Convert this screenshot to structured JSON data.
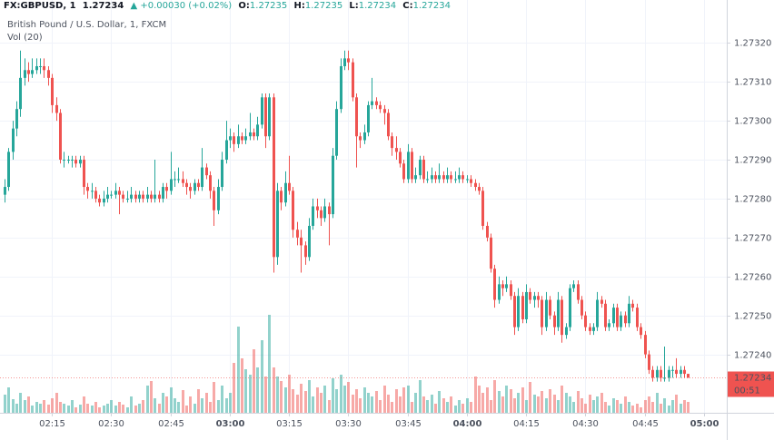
{
  "header": {
    "symbol": "FX:GBPUSD, 1",
    "price": 1.27234,
    "change": "▲ +0.00030 (+0.02%)",
    "ohlc": [
      {
        "label": "O:",
        "value": 1.27235
      },
      {
        "label": "H:",
        "value": 1.27235
      },
      {
        "label": "L:",
        "value": 1.27234
      },
      {
        "label": "C:",
        "value": 1.27234
      }
    ],
    "legend": "British Pound / U.S. Dollar, 1, FXCM",
    "volume_legend": "Vol (20)"
  },
  "chart_data": {
    "type": "candlestick",
    "up_color": "#26a69a",
    "down_color": "#ef5350",
    "grid": true,
    "ylim": [
      1.27225,
      1.27331
    ],
    "yticks": [
      {
        "value": 1.2724,
        "label": "1.27240"
      },
      {
        "value": 1.2725,
        "label": "1.27250"
      },
      {
        "value": 1.2726,
        "label": "1.27260"
      },
      {
        "value": 1.2727,
        "label": "1.27270"
      },
      {
        "value": 1.2728,
        "label": "1.27280"
      },
      {
        "value": 1.2729,
        "label": "1.27290"
      },
      {
        "value": 1.273,
        "label": "1.27300"
      },
      {
        "value": 1.2731,
        "label": "1.27310"
      },
      {
        "value": 1.2732,
        "label": "1.27320"
      }
    ],
    "xlim": [
      -1.15,
      182.8
    ],
    "xticks": [
      {
        "value": 12,
        "label": "02:15"
      },
      {
        "value": 27,
        "label": "02:30"
      },
      {
        "value": 42,
        "label": "02:45"
      },
      {
        "value": 57,
        "label": "03:00",
        "bold": true
      },
      {
        "value": 72,
        "label": "03:15"
      },
      {
        "value": 87,
        "label": "03:30"
      },
      {
        "value": 102,
        "label": "03:45"
      },
      {
        "value": 117,
        "label": "04:00",
        "bold": true
      },
      {
        "value": 132,
        "label": "04:15"
      },
      {
        "value": 147,
        "label": "04:30"
      },
      {
        "value": 162,
        "label": "04:45"
      },
      {
        "value": 177,
        "label": "05:00",
        "bold": true
      }
    ],
    "last_price": 1.27234,
    "countdown": "00:51",
    "volume_ylim": [
      0,
      120
    ],
    "candles": [
      [
        1.27281,
        1.27285,
        1.27279,
        1.27283
      ],
      [
        1.27283,
        1.27293,
        1.27282,
        1.27292
      ],
      [
        1.27292,
        1.273,
        1.2729,
        1.27298
      ],
      [
        1.27298,
        1.27305,
        1.27296,
        1.27303
      ],
      [
        1.27303,
        1.27318,
        1.27301,
        1.27311
      ],
      [
        1.27311,
        1.27316,
        1.27309,
        1.27313
      ],
      [
        1.27313,
        1.27315,
        1.2731,
        1.27312
      ],
      [
        1.27312,
        1.27316,
        1.27311,
        1.27313
      ],
      [
        1.27313,
        1.27316,
        1.27312,
        1.27314
      ],
      [
        1.27314,
        1.27316,
        1.27312,
        1.27314
      ],
      [
        1.27314,
        1.27316,
        1.27311,
        1.27313
      ],
      [
        1.27313,
        1.27314,
        1.27309,
        1.27311
      ],
      [
        1.27311,
        1.27312,
        1.27302,
        1.27304
      ],
      [
        1.27304,
        1.27306,
        1.273,
        1.27302
      ],
      [
        1.27302,
        1.27303,
        1.27289,
        1.2729
      ],
      [
        1.2729,
        1.27292,
        1.27288,
        1.2729
      ],
      [
        1.2729,
        1.27291,
        1.27289,
        1.2729
      ],
      [
        1.2729,
        1.27291,
        1.27288,
        1.2729
      ],
      [
        1.2729,
        1.27291,
        1.27288,
        1.27289
      ],
      [
        1.27289,
        1.27291,
        1.27288,
        1.2729
      ],
      [
        1.2729,
        1.27291,
        1.27281,
        1.27283
      ],
      [
        1.27283,
        1.27284,
        1.2728,
        1.27282
      ],
      [
        1.27282,
        1.27284,
        1.2728,
        1.27282
      ],
      [
        1.27282,
        1.27283,
        1.27279,
        1.2728
      ],
      [
        1.2728,
        1.27281,
        1.27278,
        1.27279
      ],
      [
        1.27279,
        1.27282,
        1.27278,
        1.2728
      ],
      [
        1.2728,
        1.27283,
        1.27279,
        1.27281
      ],
      [
        1.27281,
        1.27282,
        1.2728,
        1.27281
      ],
      [
        1.27281,
        1.27284,
        1.2728,
        1.27282
      ],
      [
        1.27282,
        1.27283,
        1.27276,
        1.27281
      ],
      [
        1.27281,
        1.27282,
        1.27279,
        1.2728
      ],
      [
        1.2728,
        1.27282,
        1.27279,
        1.2728
      ],
      [
        1.2728,
        1.27283,
        1.27279,
        1.27281
      ],
      [
        1.27281,
        1.27282,
        1.27279,
        1.2728
      ],
      [
        1.2728,
        1.27282,
        1.27279,
        1.27281
      ],
      [
        1.27281,
        1.27282,
        1.27279,
        1.2728
      ],
      [
        1.2728,
        1.27283,
        1.27279,
        1.27281
      ],
      [
        1.27281,
        1.27282,
        1.27279,
        1.2728
      ],
      [
        1.2728,
        1.2729,
        1.27279,
        1.27281
      ],
      [
        1.27281,
        1.27282,
        1.27279,
        1.2728
      ],
      [
        1.2728,
        1.27284,
        1.27279,
        1.27283
      ],
      [
        1.27283,
        1.27284,
        1.2728,
        1.27282
      ],
      [
        1.27282,
        1.27292,
        1.27281,
        1.27285
      ],
      [
        1.27285,
        1.27287,
        1.27283,
        1.27285
      ],
      [
        1.27285,
        1.27288,
        1.27284,
        1.27285
      ],
      [
        1.27285,
        1.27287,
        1.27283,
        1.27284
      ],
      [
        1.27284,
        1.27285,
        1.27281,
        1.27283
      ],
      [
        1.27283,
        1.27284,
        1.2728,
        1.27282
      ],
      [
        1.27282,
        1.27285,
        1.27281,
        1.27284
      ],
      [
        1.27284,
        1.27285,
        1.27282,
        1.27283
      ],
      [
        1.27283,
        1.27293,
        1.27282,
        1.27288
      ],
      [
        1.27288,
        1.27289,
        1.27285,
        1.27286
      ],
      [
        1.27286,
        1.27287,
        1.2728,
        1.27282
      ],
      [
        1.27282,
        1.27283,
        1.27273,
        1.27277
      ],
      [
        1.27277,
        1.27285,
        1.27276,
        1.27283
      ],
      [
        1.27283,
        1.27292,
        1.27282,
        1.2729
      ],
      [
        1.2729,
        1.273,
        1.27289,
        1.27295
      ],
      [
        1.27295,
        1.27298,
        1.27293,
        1.27296
      ],
      [
        1.27296,
        1.27297,
        1.27292,
        1.27294
      ],
      [
        1.27294,
        1.27299,
        1.27293,
        1.27296
      ],
      [
        1.27296,
        1.27297,
        1.27294,
        1.27295
      ],
      [
        1.27295,
        1.27298,
        1.27294,
        1.27296
      ],
      [
        1.27296,
        1.27302,
        1.27295,
        1.27297
      ],
      [
        1.27297,
        1.27298,
        1.27295,
        1.27296
      ],
      [
        1.27296,
        1.27301,
        1.27295,
        1.27299
      ],
      [
        1.27299,
        1.27307,
        1.27298,
        1.27306
      ],
      [
        1.27306,
        1.27307,
        1.27293,
        1.27296
      ],
      [
        1.27296,
        1.27307,
        1.27295,
        1.27306
      ],
      [
        1.27306,
        1.27307,
        1.27261,
        1.27265
      ],
      [
        1.27265,
        1.27284,
        1.27263,
        1.27282
      ],
      [
        1.27282,
        1.27283,
        1.27277,
        1.27279
      ],
      [
        1.27279,
        1.27287,
        1.27278,
        1.27284
      ],
      [
        1.27284,
        1.27291,
        1.27281,
        1.27282
      ],
      [
        1.27282,
        1.27283,
        1.2727,
        1.27272
      ],
      [
        1.27272,
        1.27274,
        1.27268,
        1.2727
      ],
      [
        1.2727,
        1.27272,
        1.27261,
        1.27268
      ],
      [
        1.27268,
        1.27269,
        1.27263,
        1.27265
      ],
      [
        1.27265,
        1.27275,
        1.27264,
        1.27273
      ],
      [
        1.27273,
        1.2728,
        1.27272,
        1.27278
      ],
      [
        1.27278,
        1.2728,
        1.27275,
        1.27277
      ],
      [
        1.27277,
        1.27278,
        1.27273,
        1.27275
      ],
      [
        1.27275,
        1.2728,
        1.27274,
        1.27278
      ],
      [
        1.27278,
        1.27279,
        1.27268,
        1.27276
      ],
      [
        1.27276,
        1.27293,
        1.27275,
        1.27291
      ],
      [
        1.27291,
        1.27305,
        1.2729,
        1.27303
      ],
      [
        1.27303,
        1.27316,
        1.27302,
        1.27314
      ],
      [
        1.27314,
        1.27318,
        1.27313,
        1.27316
      ],
      [
        1.27316,
        1.27318,
        1.27313,
        1.27315
      ],
      [
        1.27315,
        1.27316,
        1.27305,
        1.27306
      ],
      [
        1.27306,
        1.27307,
        1.27288,
        1.27296
      ],
      [
        1.27296,
        1.27297,
        1.27293,
        1.27295
      ],
      [
        1.27295,
        1.27299,
        1.27294,
        1.27297
      ],
      [
        1.27297,
        1.27305,
        1.27296,
        1.27304
      ],
      [
        1.27304,
        1.27311,
        1.27303,
        1.27305
      ],
      [
        1.27305,
        1.27306,
        1.27303,
        1.27304
      ],
      [
        1.27304,
        1.27305,
        1.27302,
        1.27303
      ],
      [
        1.27303,
        1.27304,
        1.27299,
        1.27302
      ],
      [
        1.27302,
        1.27303,
        1.27295,
        1.27296
      ],
      [
        1.27296,
        1.27297,
        1.27291,
        1.27293
      ],
      [
        1.27293,
        1.27296,
        1.2729,
        1.27292
      ],
      [
        1.27292,
        1.27293,
        1.27288,
        1.27289
      ],
      [
        1.27289,
        1.2729,
        1.27284,
        1.27285
      ],
      [
        1.27285,
        1.27294,
        1.27284,
        1.27292
      ],
      [
        1.27292,
        1.27293,
        1.27284,
        1.27285
      ],
      [
        1.27285,
        1.27288,
        1.27284,
        1.27286
      ],
      [
        1.27286,
        1.27291,
        1.27285,
        1.2729
      ],
      [
        1.2729,
        1.27291,
        1.27284,
        1.27285
      ],
      [
        1.27285,
        1.27287,
        1.27284,
        1.27285
      ],
      [
        1.27285,
        1.27288,
        1.27284,
        1.27286
      ],
      [
        1.27286,
        1.27287,
        1.27284,
        1.27285
      ],
      [
        1.27285,
        1.27289,
        1.27284,
        1.27286
      ],
      [
        1.27286,
        1.27287,
        1.27284,
        1.27285
      ],
      [
        1.27285,
        1.27288,
        1.27284,
        1.27286
      ],
      [
        1.27286,
        1.27287,
        1.27284,
        1.27285
      ],
      [
        1.27285,
        1.27287,
        1.27284,
        1.27285
      ],
      [
        1.27285,
        1.27288,
        1.27284,
        1.27286
      ],
      [
        1.27286,
        1.27287,
        1.27284,
        1.27285
      ],
      [
        1.27285,
        1.27286,
        1.27284,
        1.27285
      ],
      [
        1.27285,
        1.27286,
        1.27283,
        1.27284
      ],
      [
        1.27284,
        1.27285,
        1.27282,
        1.27283
      ],
      [
        1.27283,
        1.27284,
        1.27281,
        1.27282
      ],
      [
        1.27282,
        1.27283,
        1.27272,
        1.27273
      ],
      [
        1.27273,
        1.27274,
        1.27269,
        1.2727
      ],
      [
        1.2727,
        1.27271,
        1.27261,
        1.27262
      ],
      [
        1.27262,
        1.27263,
        1.27252,
        1.27254
      ],
      [
        1.27254,
        1.2726,
        1.27253,
        1.27258
      ],
      [
        1.27258,
        1.27259,
        1.27255,
        1.27257
      ],
      [
        1.27257,
        1.2726,
        1.27256,
        1.27258
      ],
      [
        1.27258,
        1.27259,
        1.27254,
        1.27255
      ],
      [
        1.27255,
        1.27256,
        1.27245,
        1.27247
      ],
      [
        1.27247,
        1.27257,
        1.27246,
        1.27255
      ],
      [
        1.27255,
        1.27256,
        1.27248,
        1.27249
      ],
      [
        1.27249,
        1.27258,
        1.27248,
        1.27256
      ],
      [
        1.27256,
        1.27257,
        1.27253,
        1.27254
      ],
      [
        1.27254,
        1.27256,
        1.27252,
        1.27255
      ],
      [
        1.27255,
        1.27256,
        1.27252,
        1.27254
      ],
      [
        1.27254,
        1.27255,
        1.27245,
        1.27247
      ],
      [
        1.27247,
        1.27256,
        1.27246,
        1.27254
      ],
      [
        1.27254,
        1.27255,
        1.27249,
        1.2725
      ],
      [
        1.2725,
        1.27251,
        1.27245,
        1.27247
      ],
      [
        1.27247,
        1.27256,
        1.27246,
        1.27254
      ],
      [
        1.27254,
        1.27255,
        1.27243,
        1.27245
      ],
      [
        1.27245,
        1.27248,
        1.27244,
        1.27247
      ],
      [
        1.27247,
        1.27258,
        1.27246,
        1.27257
      ],
      [
        1.27257,
        1.27259,
        1.27256,
        1.27258
      ],
      [
        1.27258,
        1.27259,
        1.27253,
        1.27254
      ],
      [
        1.27254,
        1.27255,
        1.27249,
        1.2725
      ],
      [
        1.2725,
        1.27251,
        1.27246,
        1.27247
      ],
      [
        1.27247,
        1.27248,
        1.27245,
        1.27246
      ],
      [
        1.27246,
        1.27248,
        1.27245,
        1.27247
      ],
      [
        1.27247,
        1.27256,
        1.27246,
        1.27254
      ],
      [
        1.27254,
        1.27255,
        1.27252,
        1.27253
      ],
      [
        1.27253,
        1.27254,
        1.27246,
        1.27247
      ],
      [
        1.27247,
        1.27249,
        1.27246,
        1.27248
      ],
      [
        1.27248,
        1.27253,
        1.27247,
        1.27252
      ],
      [
        1.27252,
        1.27253,
        1.27246,
        1.27247
      ],
      [
        1.27247,
        1.27251,
        1.27246,
        1.2725
      ],
      [
        1.2725,
        1.27251,
        1.27247,
        1.27248
      ],
      [
        1.27248,
        1.27255,
        1.27247,
        1.27253
      ],
      [
        1.27253,
        1.27254,
        1.27251,
        1.27252
      ],
      [
        1.27252,
        1.27253,
        1.27246,
        1.27247
      ],
      [
        1.27247,
        1.27248,
        1.27244,
        1.27245
      ],
      [
        1.27245,
        1.27246,
        1.27239,
        1.2724
      ],
      [
        1.2724,
        1.27241,
        1.27235,
        1.27236
      ],
      [
        1.27236,
        1.27237,
        1.27233,
        1.27234
      ],
      [
        1.27234,
        1.27237,
        1.27233,
        1.27236
      ],
      [
        1.27236,
        1.27237,
        1.27233,
        1.27234
      ],
      [
        1.27234,
        1.27242,
        1.27233,
        1.27234
      ],
      [
        1.27234,
        1.27237,
        1.27233,
        1.27236
      ],
      [
        1.27236,
        1.27237,
        1.27234,
        1.27236
      ],
      [
        1.27236,
        1.27239,
        1.27234,
        1.27235
      ],
      [
        1.27235,
        1.27237,
        1.27234,
        1.27236
      ],
      [
        1.27236,
        1.27237,
        1.27234,
        1.27235
      ],
      [
        1.27235,
        1.27235,
        1.27234,
        1.27234
      ]
    ],
    "volumes": [
      20,
      28,
      15,
      10,
      22,
      14,
      18,
      8,
      12,
      10,
      14,
      9,
      16,
      22,
      12,
      10,
      8,
      14,
      6,
      9,
      18,
      10,
      8,
      12,
      6,
      8,
      10,
      14,
      8,
      12,
      9,
      6,
      18,
      8,
      10,
      14,
      30,
      35,
      16,
      10,
      22,
      18,
      28,
      16,
      12,
      25,
      8,
      18,
      10,
      26,
      16,
      22,
      12,
      34,
      14,
      30,
      16,
      22,
      55,
      95,
      60,
      48,
      42,
      70,
      50,
      80,
      40,
      108,
      50,
      40,
      35,
      28,
      42,
      26,
      20,
      32,
      24,
      36,
      18,
      28,
      22,
      30,
      14,
      38,
      26,
      42,
      30,
      34,
      20,
      26,
      16,
      28,
      22,
      18,
      24,
      14,
      30,
      20,
      12,
      26,
      18,
      28,
      30,
      12,
      22,
      36,
      18,
      14,
      20,
      10,
      24,
      16,
      12,
      18,
      8,
      14,
      10,
      16,
      12,
      40,
      30,
      22,
      28,
      14,
      36,
      24,
      18,
      30,
      26,
      16,
      22,
      28,
      14,
      34,
      20,
      18,
      24,
      16,
      26,
      20,
      14,
      30,
      22,
      18,
      12,
      24,
      16,
      10,
      20,
      14,
      18,
      22,
      12,
      8,
      16,
      14,
      10,
      18,
      12,
      8,
      10,
      6,
      14,
      18,
      12,
      22,
      10,
      16,
      8,
      14,
      20,
      10,
      14,
      12
    ]
  }
}
